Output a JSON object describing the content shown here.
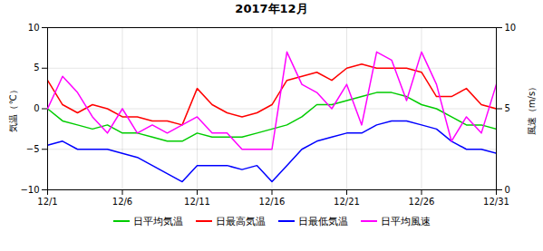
{
  "chart_data": {
    "type": "line",
    "title": "2017年12月",
    "x": [
      1,
      2,
      3,
      4,
      5,
      6,
      7,
      8,
      9,
      10,
      11,
      12,
      13,
      14,
      15,
      16,
      17,
      18,
      19,
      20,
      21,
      22,
      23,
      24,
      25,
      26,
      27,
      28,
      29,
      30,
      31
    ],
    "xlim": [
      1,
      31
    ],
    "xticks": [
      {
        "value": 1,
        "label": "12/1"
      },
      {
        "value": 6,
        "label": "12/6"
      },
      {
        "value": 11,
        "label": "12/11"
      },
      {
        "value": 16,
        "label": "12/16"
      },
      {
        "value": 21,
        "label": "12/21"
      },
      {
        "value": 26,
        "label": "12/26"
      },
      {
        "value": 31,
        "label": "12/31"
      }
    ],
    "ylim": [
      -10,
      10
    ],
    "yticks": [
      -10,
      -5,
      0,
      5,
      10
    ],
    "y2lim": [
      0,
      10
    ],
    "y2ticks": [
      0,
      5,
      10
    ],
    "ylabel": "気温（℃）",
    "y2label": "風速（m/s）",
    "grid": true,
    "legend": "bottom",
    "series": [
      {
        "name": "日平均気温",
        "color": "#00cc00",
        "values": [
          0.0,
          -1.5,
          -2.0,
          -2.5,
          -2.0,
          -3.0,
          -3.0,
          -3.5,
          -4.0,
          -4.0,
          -3.0,
          -3.5,
          -3.5,
          -3.5,
          -3.0,
          -2.5,
          -2.0,
          -1.0,
          0.5,
          0.5,
          1.0,
          1.5,
          2.0,
          2.0,
          1.5,
          0.5,
          0.0,
          -1.0,
          -2.0,
          -2.0,
          -2.5
        ]
      },
      {
        "name": "日最高気温",
        "color": "#ff0000",
        "values": [
          3.5,
          0.5,
          -0.5,
          0.5,
          0.0,
          -1.0,
          -1.0,
          -1.5,
          -1.5,
          -2.0,
          2.5,
          0.5,
          -0.5,
          -1.0,
          -0.5,
          0.5,
          3.5,
          4.0,
          4.5,
          3.5,
          5.0,
          5.5,
          5.0,
          5.0,
          5.0,
          4.5,
          1.5,
          1.5,
          2.5,
          0.5,
          0.0
        ]
      },
      {
        "name": "日最低気温",
        "color": "#0000ff",
        "values": [
          -4.5,
          -4.0,
          -5.0,
          -5.0,
          -5.0,
          -5.5,
          -6.0,
          -7.0,
          -8.0,
          -9.0,
          -7.0,
          -7.0,
          -7.0,
          -7.5,
          -7.0,
          -9.0,
          -7.0,
          -5.0,
          -4.0,
          -3.5,
          -3.0,
          -3.0,
          -2.0,
          -1.5,
          -1.5,
          -2.0,
          -2.5,
          -4.0,
          -5.0,
          -5.0,
          -5.5
        ]
      },
      {
        "name": "日平均風速",
        "color": "#ff00ff",
        "axis": "y2",
        "values": [
          5.0,
          7.0,
          6.0,
          4.5,
          3.5,
          5.0,
          3.5,
          4.0,
          3.5,
          4.0,
          4.5,
          3.5,
          3.5,
          2.5,
          2.5,
          2.5,
          8.5,
          6.5,
          6.0,
          5.0,
          6.5,
          4.0,
          8.5,
          8.0,
          5.5,
          8.5,
          6.5,
          3.0,
          4.5,
          3.5,
          6.5
        ]
      }
    ]
  }
}
